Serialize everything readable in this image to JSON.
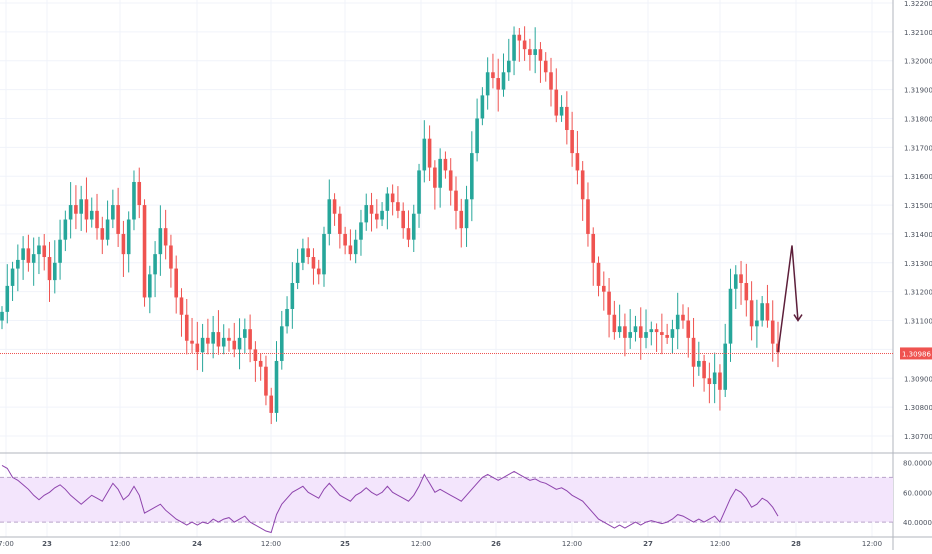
{
  "chart_data": [
    {
      "type": "candlestick",
      "title": "",
      "xlabel": "",
      "ylabel": "",
      "ylim": [
        1.3066,
        1.3222
      ],
      "y_ticks": [
        "1.32200",
        "1.32100",
        "1.32000",
        "1.31900",
        "1.31800",
        "1.31700",
        "1.31600",
        "1.31500",
        "1.31400",
        "1.31300",
        "1.31200",
        "1.31100",
        "1.31000",
        "1.30900",
        "1.30800",
        "1.30700"
      ],
      "x_ticks": [
        "7:00",
        "23",
        "12:00",
        "24",
        "12:00",
        "25",
        "12:00",
        "26",
        "12:00",
        "27",
        "12:00",
        "28",
        "12:00"
      ],
      "current_price_label": "1.30986",
      "current_price": 1.30986,
      "series_close": [
        1.3113,
        1.3122,
        1.3128,
        1.3131,
        1.3135,
        1.313,
        1.3133,
        1.3136,
        1.3132,
        1.3124,
        1.313,
        1.3138,
        1.3145,
        1.315,
        1.3147,
        1.3152,
        1.3145,
        1.3148,
        1.3142,
        1.3138,
        1.3145,
        1.315,
        1.314,
        1.3133,
        1.3145,
        1.3158,
        1.315,
        1.3118,
        1.3126,
        1.3133,
        1.3142,
        1.3136,
        1.3128,
        1.3118,
        1.3112,
        1.3103,
        1.3102,
        1.3099,
        1.3104,
        1.3102,
        1.3106,
        1.3101,
        1.3104,
        1.3103,
        1.31,
        1.3104,
        1.3107,
        1.31,
        1.3096,
        1.3094,
        1.3084,
        1.3078,
        1.3096,
        1.3108,
        1.3114,
        1.3123,
        1.313,
        1.3135,
        1.3132,
        1.3128,
        1.3126,
        1.314,
        1.3152,
        1.3147,
        1.314,
        1.3136,
        1.3133,
        1.3138,
        1.3144,
        1.315,
        1.3147,
        1.3145,
        1.3148,
        1.3154,
        1.3151,
        1.3148,
        1.3142,
        1.3138,
        1.3147,
        1.3162,
        1.3173,
        1.3163,
        1.3156,
        1.3166,
        1.3162,
        1.3155,
        1.3148,
        1.3142,
        1.3152,
        1.3168,
        1.318,
        1.3188,
        1.3196,
        1.3194,
        1.319,
        1.3196,
        1.32,
        1.3209,
        1.3207,
        1.3204,
        1.3202,
        1.3204,
        1.32,
        1.3196,
        1.319,
        1.3181,
        1.3184,
        1.3176,
        1.3168,
        1.3162,
        1.3152,
        1.314,
        1.313,
        1.3122,
        1.312,
        1.3112,
        1.3106,
        1.3108,
        1.3104,
        1.3106,
        1.3108,
        1.3104,
        1.3106,
        1.3107,
        1.3106,
        1.3105,
        1.3104,
        1.3107,
        1.3112,
        1.311,
        1.3104,
        1.3094,
        1.3096,
        1.309,
        1.3088,
        1.3092,
        1.3086,
        1.3102,
        1.3121,
        1.3126,
        1.3123,
        1.3117,
        1.3108,
        1.311,
        1.3116,
        1.311,
        1.3102,
        1.3099
      ],
      "overlay_annotation": "projection-arrow",
      "panel_split": "oscillator-below"
    },
    {
      "type": "line",
      "title": "",
      "xlabel": "",
      "ylabel": "",
      "ylim": [
        30,
        80
      ],
      "y_ticks": [
        "80.0000",
        "60.0000",
        "40.0000"
      ],
      "band": [
        40,
        70
      ],
      "values": [
        78,
        76,
        70,
        68,
        65,
        62,
        58,
        55,
        58,
        60,
        63,
        65,
        62,
        58,
        55,
        52,
        55,
        58,
        56,
        54,
        60,
        66,
        62,
        55,
        58,
        64,
        58,
        46,
        48,
        50,
        52,
        48,
        45,
        42,
        40,
        38,
        40,
        38,
        40,
        39,
        42,
        40,
        42,
        43,
        40,
        42,
        44,
        40,
        38,
        36,
        34,
        33,
        45,
        52,
        56,
        60,
        62,
        64,
        60,
        58,
        56,
        62,
        66,
        62,
        58,
        56,
        54,
        58,
        60,
        63,
        60,
        58,
        60,
        64,
        60,
        58,
        56,
        54,
        58,
        64,
        72,
        66,
        60,
        62,
        60,
        58,
        56,
        54,
        58,
        62,
        66,
        70,
        72,
        70,
        68,
        70,
        72,
        74,
        72,
        70,
        68,
        69,
        67,
        66,
        64,
        62,
        63,
        61,
        58,
        56,
        54,
        50,
        46,
        42,
        40,
        38,
        36,
        38,
        36,
        38,
        40,
        38,
        40,
        41,
        40,
        39,
        40,
        42,
        45,
        44,
        42,
        40,
        42,
        40,
        42,
        44,
        40,
        48,
        56,
        62,
        60,
        56,
        50,
        52,
        56,
        54,
        50,
        44
      ]
    }
  ]
}
